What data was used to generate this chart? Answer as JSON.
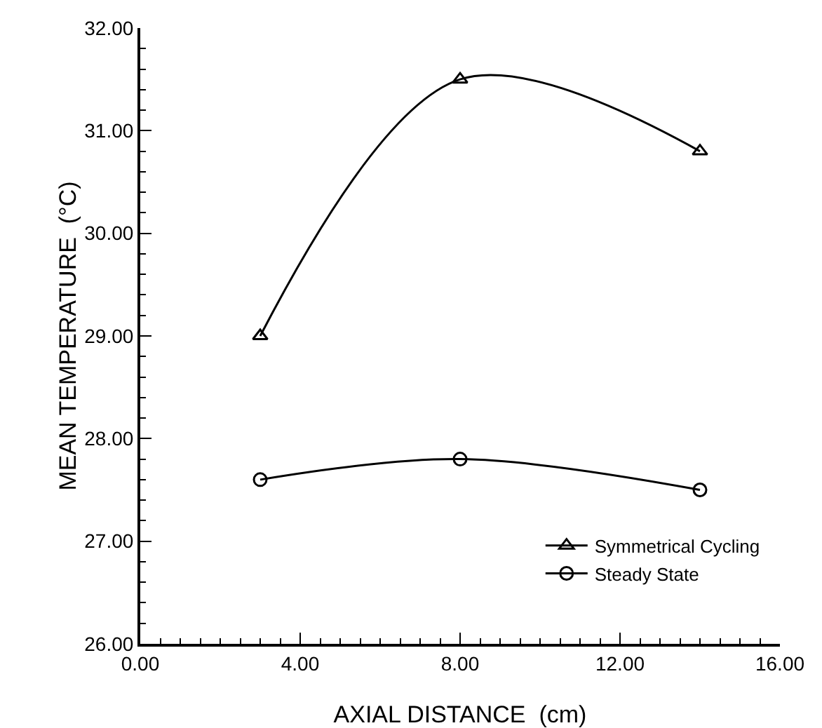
{
  "chart_data": {
    "type": "line",
    "xlabel": "AXIAL DISTANCE  (cm)",
    "ylabel": "MEAN TEMPERATURE  (°C)",
    "x": [
      3,
      8,
      14
    ],
    "series": [
      {
        "name": "Symmetrical Cycling",
        "color": "#000000",
        "marker": "triangle",
        "values": [
          29.0,
          31.5,
          30.8
        ]
      },
      {
        "name": "Steady State",
        "color": "#000000",
        "marker": "circle",
        "values": [
          27.6,
          27.8,
          27.5
        ]
      }
    ],
    "xlim": [
      0,
      16
    ],
    "ylim": [
      26,
      32
    ],
    "xticks": [
      {
        "value": 0,
        "label": "0.00"
      },
      {
        "value": 4,
        "label": "4.00"
      },
      {
        "value": 8,
        "label": "8.00"
      },
      {
        "value": 12,
        "label": "12.00"
      },
      {
        "value": 16,
        "label": "16.00"
      }
    ],
    "yticks": [
      {
        "value": 26,
        "label": "26.00"
      },
      {
        "value": 27,
        "label": "27.00"
      },
      {
        "value": 28,
        "label": "28.00"
      },
      {
        "value": 29,
        "label": "29.00"
      },
      {
        "value": 30,
        "label": "30.00"
      },
      {
        "value": 31,
        "label": "31.00"
      },
      {
        "value": 32,
        "label": "32.00"
      }
    ],
    "grid": false,
    "legend": "bottom right",
    "line_style": "solid"
  }
}
